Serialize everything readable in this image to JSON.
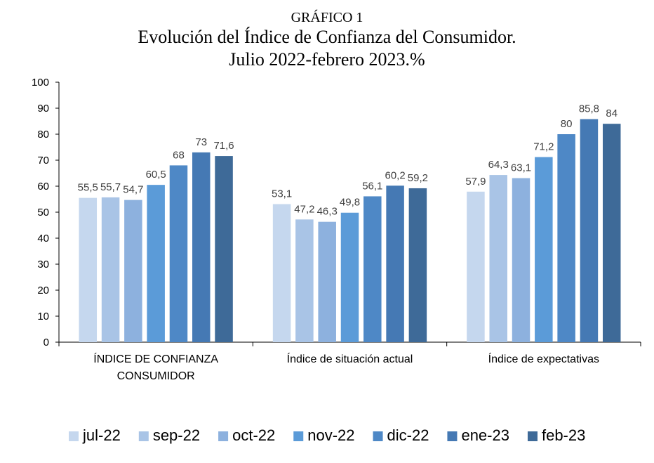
{
  "chart_data": {
    "type": "bar",
    "title_line1": "GRÁFICO 1",
    "title_line2": "Evolución  del Índice de Confianza del Consumidor.",
    "title_line3": "Julio 2022-febrero 2023.%",
    "categories": [
      [
        "ÍNDICE DE CONFIANZA",
        "CONSUMIDOR"
      ],
      [
        "Índice de situación actual"
      ],
      [
        "Índice de expectativas"
      ]
    ],
    "series": [
      {
        "name": "jul-22",
        "color": "#c5d7ee",
        "values": [
          55.5,
          53.1,
          57.9
        ],
        "labels": [
          "55,5",
          "53,1",
          "57,9"
        ]
      },
      {
        "name": "sep-22",
        "color": "#a9c4e6",
        "values": [
          55.7,
          47.2,
          64.3
        ],
        "labels": [
          "55,7",
          "47,2",
          "64,3"
        ]
      },
      {
        "name": "oct-22",
        "color": "#8db1de",
        "values": [
          54.7,
          46.3,
          63.1
        ],
        "labels": [
          "54,7",
          "46,3",
          "63,1"
        ]
      },
      {
        "name": "nov-22",
        "color": "#5b9bd8",
        "values": [
          60.5,
          49.8,
          71.2
        ],
        "labels": [
          "60,5",
          "49,8",
          "71,2"
        ]
      },
      {
        "name": "dic-22",
        "color": "#4e88c6",
        "values": [
          68,
          56.1,
          80
        ],
        "labels": [
          "68",
          "56,1",
          "80"
        ]
      },
      {
        "name": "ene-23",
        "color": "#4579b4",
        "values": [
          73,
          60.2,
          85.8
        ],
        "labels": [
          "73",
          "60,2",
          "85,8"
        ]
      },
      {
        "name": "feb-23",
        "color": "#3e6a98",
        "values": [
          71.6,
          59.2,
          84
        ],
        "labels": [
          "71,6",
          "59,2",
          "84"
        ]
      }
    ],
    "ylim": [
      0,
      100
    ],
    "yticks": [
      0,
      10,
      20,
      30,
      40,
      50,
      60,
      70,
      80,
      90,
      100
    ],
    "grid": false,
    "legend_position": "bottom"
  }
}
